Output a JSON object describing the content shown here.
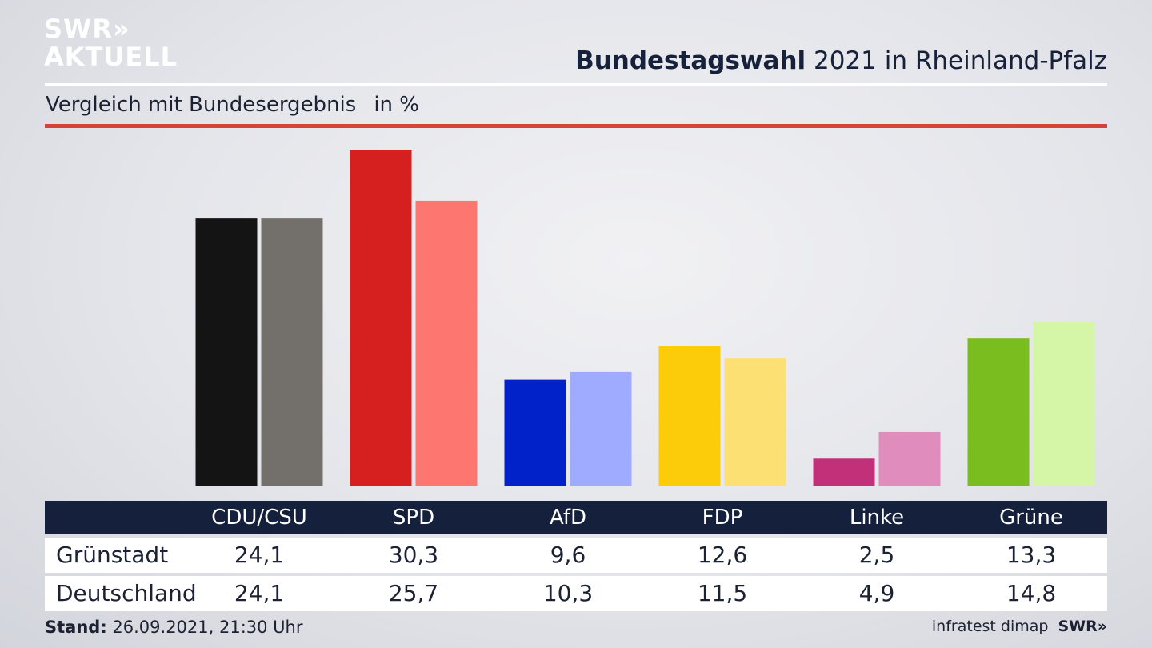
{
  "brand": {
    "line1": "SWR»",
    "line2": "AKTUELL"
  },
  "header": {
    "title_bold": "Bundestagswahl",
    "title_rest": " 2021 in Rheinland-Pfalz",
    "subtitle": "Vergleich mit Bundesergebnis",
    "unit": "in %"
  },
  "colors": {
    "title_rule": "#ffffff",
    "accent_rule": "#d34537",
    "table_header": "#14203c"
  },
  "chart_data": {
    "type": "bar",
    "title": "Bundestagswahl 2021 in Rheinland-Pfalz",
    "subtitle": "Vergleich mit Bundesergebnis",
    "ylabel": "in %",
    "ylim": [
      0,
      30.3
    ],
    "grid": false,
    "categories": [
      "CDU/CSU",
      "SPD",
      "AfD",
      "FDP",
      "Linke",
      "Grüne"
    ],
    "series": [
      {
        "name": "Grünstadt",
        "values": [
          24.1,
          30.3,
          9.6,
          12.6,
          2.5,
          13.3
        ],
        "colors": [
          "#141414",
          "#d61f1f",
          "#0022c8",
          "#fccb0a",
          "#c2307a",
          "#79bd1e"
        ]
      },
      {
        "name": "Deutschland",
        "values": [
          24.1,
          25.7,
          10.3,
          11.5,
          4.9,
          14.8
        ],
        "colors": [
          "#73706c",
          "#fd7670",
          "#9fabff",
          "#fde074",
          "#e08cbc",
          "#d4f6a6"
        ]
      }
    ]
  },
  "table": {
    "headers": [
      "CDU/CSU",
      "SPD",
      "AfD",
      "FDP",
      "Linke",
      "Grüne"
    ],
    "rows": [
      {
        "label": "Grünstadt",
        "values": [
          "24,1",
          "30,3",
          "9,6",
          "12,6",
          "2,5",
          "13,3"
        ]
      },
      {
        "label": "Deutschland",
        "values": [
          "24,1",
          "25,7",
          "10,3",
          "11,5",
          "4,9",
          "14,8"
        ]
      }
    ]
  },
  "footer": {
    "stand_label": "Stand:",
    "stand_value": " 26.09.2021, 21:30 Uhr",
    "source": "infratest dimap",
    "brand": "SWR»"
  }
}
